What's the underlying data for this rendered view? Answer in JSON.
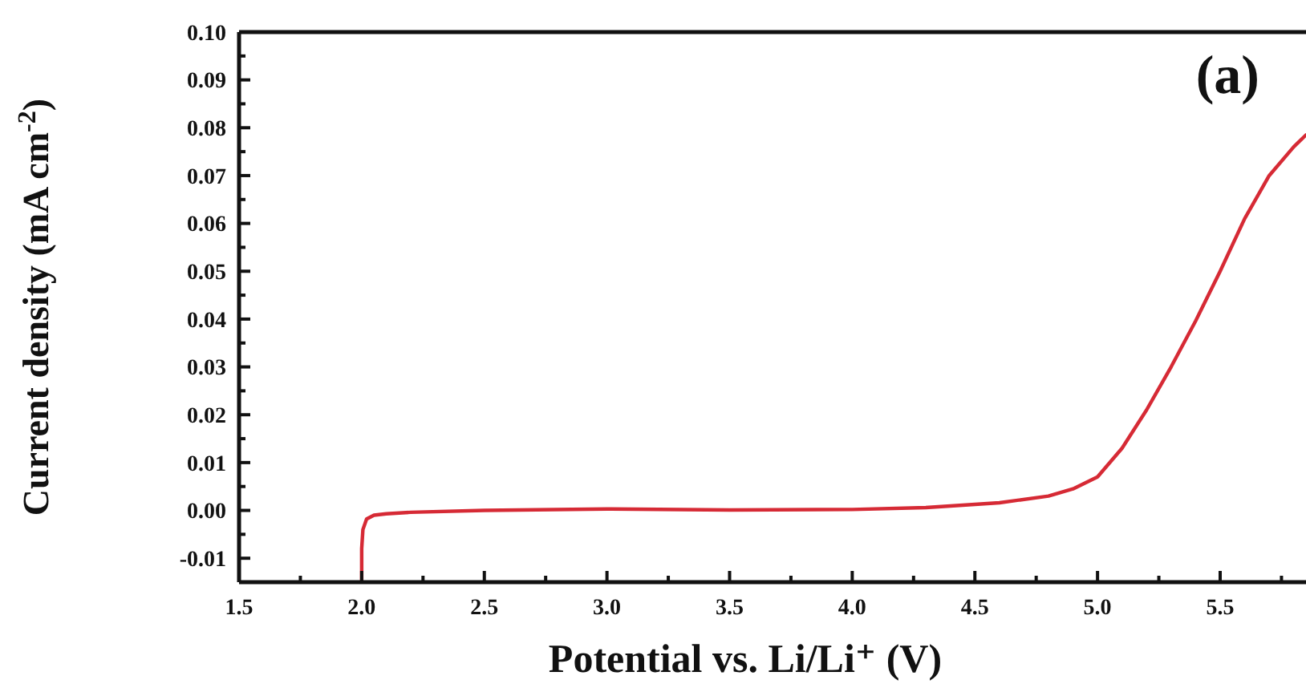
{
  "chart_data": {
    "type": "line",
    "xlabel": "Potential vs. Li/Li⁺ (V)",
    "ylabel": "Current density (mA cm$^{-2}$)",
    "annotations": [
      "(a)"
    ],
    "xlim": [
      1.5,
      5.85
    ],
    "ylim": [
      -0.015,
      0.1
    ],
    "xticks": [
      {
        "value": 1.5,
        "label": "1.5"
      },
      {
        "value": 1.75,
        "label": null
      },
      {
        "value": 2,
        "label": "2.0"
      },
      {
        "value": 2.25,
        "label": null
      },
      {
        "value": 2.5,
        "label": "2.5"
      },
      {
        "value": 2.75,
        "label": null
      },
      {
        "value": 3,
        "label": "3.0"
      },
      {
        "value": 3.25,
        "label": null
      },
      {
        "value": 3.5,
        "label": "3.5"
      },
      {
        "value": 3.75,
        "label": null
      },
      {
        "value": 4,
        "label": "4.0"
      },
      {
        "value": 4.25,
        "label": null
      },
      {
        "value": 4.5,
        "label": "4.5"
      },
      {
        "value": 4.75,
        "label": null
      },
      {
        "value": 5,
        "label": "5.0"
      },
      {
        "value": 5.25,
        "label": null
      },
      {
        "value": 5.5,
        "label": "5.5"
      },
      {
        "value": 5.75,
        "label": null
      }
    ],
    "yticks": [
      {
        "value": -0.01,
        "label": "-0.01"
      },
      {
        "value": -0.005,
        "label": null
      },
      {
        "value": 0,
        "label": "0.00"
      },
      {
        "value": 0.005,
        "label": null
      },
      {
        "value": 0.01,
        "label": "0.01"
      },
      {
        "value": 0.015,
        "label": null
      },
      {
        "value": 0.02,
        "label": "0.02"
      },
      {
        "value": 0.025,
        "label": null
      },
      {
        "value": 0.03,
        "label": "0.03"
      },
      {
        "value": 0.035,
        "label": null
      },
      {
        "value": 0.04,
        "label": "0.04"
      },
      {
        "value": 0.045,
        "label": null
      },
      {
        "value": 0.05,
        "label": "0.05"
      },
      {
        "value": 0.055,
        "label": null
      },
      {
        "value": 0.06,
        "label": "0.06"
      },
      {
        "value": 0.065,
        "label": null
      },
      {
        "value": 0.07,
        "label": "0.07"
      },
      {
        "value": 0.075,
        "label": null
      },
      {
        "value": 0.08,
        "label": "0.08"
      },
      {
        "value": 0.085,
        "label": null
      },
      {
        "value": 0.09,
        "label": "0.09"
      },
      {
        "value": 0.095,
        "label": null
      },
      {
        "value": 0.1,
        "label": "0.10"
      }
    ],
    "grid": false,
    "marker": "none",
    "line_style": "solid",
    "series": [
      {
        "color": "#d62a35",
        "x": [
          2.0,
          2.0,
          2.005,
          2.02,
          2.05,
          2.1,
          2.2,
          2.5,
          3.0,
          3.5,
          4.0,
          4.3,
          4.6,
          4.8,
          4.9,
          5.0,
          5.1,
          5.2,
          5.3,
          5.4,
          5.5,
          5.6,
          5.7,
          5.8,
          5.85
        ],
        "values": [
          -0.015,
          -0.008,
          -0.004,
          -0.0018,
          -0.001,
          -0.0007,
          -0.0004,
          0,
          0.0003,
          0.0001,
          0.0002,
          0.0006,
          0.0016,
          0.003,
          0.0045,
          0.007,
          0.013,
          0.021,
          0.03,
          0.0396,
          0.05,
          0.061,
          0.07,
          0.076,
          0.0785
        ]
      }
    ]
  }
}
